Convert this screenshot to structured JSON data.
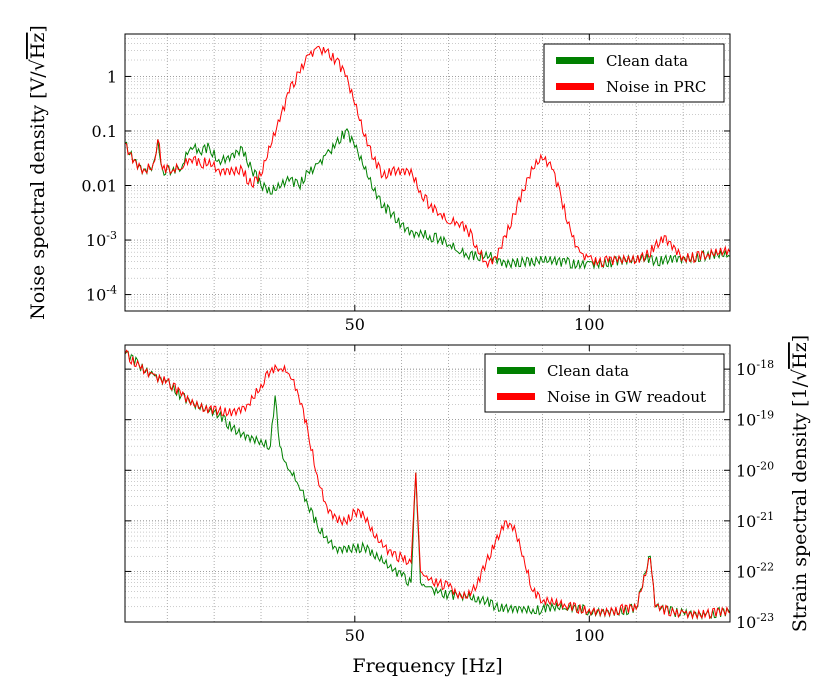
{
  "chart_data": [
    {
      "type": "line",
      "ylabel_prefix": "Noise spectral density [V/",
      "ylabel_radicand": "Hz",
      "ylabel_suffix": "]",
      "xlabel": "",
      "yscale": "log",
      "xlim": [
        1,
        130
      ],
      "ylim": [
        5e-05,
        6
      ],
      "x_ticks": [
        50,
        100
      ],
      "x_tick_labels": [
        "50",
        "100"
      ],
      "y_ticks": [
        0.0001,
        0.001,
        0.01,
        0.1,
        1
      ],
      "y_tick_labels": [
        "10^-4",
        "10^-3",
        "0.01",
        "0.1",
        "1"
      ],
      "grid": true,
      "legend_position": "top-right",
      "series": [
        {
          "name": "Clean data",
          "color": "#008000",
          "x": [
            1,
            3,
            5,
            7,
            8,
            9,
            11,
            13,
            15,
            17,
            19,
            21,
            23,
            26,
            28,
            30,
            32,
            34,
            36,
            38,
            40,
            42,
            44,
            46,
            48,
            50,
            52,
            54,
            56,
            58,
            60,
            62,
            63,
            64,
            66,
            68,
            70,
            72,
            74,
            76,
            78,
            80,
            82,
            84,
            86,
            88,
            90,
            95,
            100,
            105,
            110,
            112,
            114,
            116,
            118,
            120,
            125,
            130
          ],
          "y": [
            0.06,
            0.03,
            0.02,
            0.025,
            0.07,
            0.02,
            0.018,
            0.02,
            0.05,
            0.04,
            0.05,
            0.03,
            0.035,
            0.05,
            0.02,
            0.01,
            0.007,
            0.009,
            0.012,
            0.01,
            0.018,
            0.025,
            0.04,
            0.06,
            0.1,
            0.05,
            0.02,
            0.008,
            0.004,
            0.003,
            0.002,
            0.0015,
            0.0014,
            0.0015,
            0.0012,
            0.001,
            0.0008,
            0.0006,
            0.0005,
            0.0005,
            0.0006,
            0.0005,
            0.0004,
            0.0004,
            0.0004,
            0.00037,
            0.0004,
            0.00037,
            0.0004,
            0.0004,
            0.0004,
            0.00045,
            0.0004,
            0.00045,
            0.0005,
            0.0005,
            0.0005,
            0.0005
          ]
        },
        {
          "name": "Noise in PRC",
          "color": "#ff0000",
          "x": [
            1,
            3,
            5,
            7,
            8,
            9,
            11,
            13,
            15,
            17,
            19,
            21,
            23,
            26,
            28,
            30,
            32,
            34,
            36,
            38,
            40,
            42,
            44,
            46,
            48,
            50,
            52,
            54,
            56,
            58,
            60,
            62,
            64,
            66,
            68,
            70,
            72,
            74,
            76,
            78,
            80,
            82,
            84,
            86,
            88,
            90,
            92,
            94,
            96,
            98,
            100,
            102,
            104,
            106,
            108,
            110,
            112,
            114,
            116,
            118,
            120,
            125,
            130
          ],
          "y": [
            0.06,
            0.03,
            0.02,
            0.025,
            0.07,
            0.02,
            0.018,
            0.02,
            0.03,
            0.025,
            0.03,
            0.02,
            0.02,
            0.02,
            0.01,
            0.015,
            0.05,
            0.15,
            0.5,
            1.2,
            2.5,
            3.5,
            3.0,
            2.0,
            1.0,
            0.3,
            0.08,
            0.03,
            0.015,
            0.02,
            0.02,
            0.02,
            0.008,
            0.004,
            0.003,
            0.002,
            0.002,
            0.0015,
            0.0008,
            0.0004,
            0.0005,
            0.0012,
            0.003,
            0.008,
            0.02,
            0.03,
            0.02,
            0.006,
            0.0015,
            0.0006,
            0.0005,
            0.0004,
            0.0004,
            0.0004,
            0.0004,
            0.0004,
            0.0005,
            0.0008,
            0.0012,
            0.0008,
            0.0005,
            0.0005,
            0.0006
          ]
        }
      ]
    },
    {
      "type": "line",
      "ylabel_prefix": "Strain spectral density [1/",
      "ylabel_radicand": "Hz",
      "ylabel_suffix": "]",
      "xlabel": "Frequency [Hz]",
      "yscale": "log",
      "xlim": [
        1,
        130
      ],
      "ylim": [
        1e-23,
        3e-18
      ],
      "x_ticks": [
        50,
        100
      ],
      "x_tick_labels": [
        "50",
        "100"
      ],
      "y_ticks": [
        1e-23,
        1e-22,
        1e-21,
        1e-20,
        1e-19,
        1e-18
      ],
      "y_tick_labels": [
        "10^-23",
        "10^-22",
        "10^-21",
        "10^-20",
        "10^-19",
        "10^-18"
      ],
      "grid": true,
      "legend_position": "top-right",
      "series": [
        {
          "name": "Clean data",
          "color": "#008000",
          "x": [
            1,
            4,
            7,
            10,
            13,
            15,
            18,
            21,
            24,
            27,
            30,
            32,
            33,
            34,
            35,
            36,
            38,
            40,
            42,
            44,
            46,
            48,
            50,
            52,
            54,
            56,
            58,
            60,
            62,
            63,
            64,
            65,
            66,
            68,
            70,
            72,
            74,
            76,
            78,
            80,
            82,
            84,
            86,
            88,
            90,
            95,
            100,
            105,
            110,
            113,
            114,
            115,
            118,
            120,
            125,
            130
          ],
          "y": [
            2e-18,
            1.2e-18,
            8e-19,
            6e-19,
            3e-19,
            2e-19,
            1.5e-19,
            1.2e-19,
            7e-20,
            5e-20,
            4e-20,
            3e-20,
            3e-19,
            3e-20,
            1.5e-20,
            1e-20,
            5e-21,
            2e-21,
            8e-22,
            5e-22,
            3e-22,
            3e-22,
            3e-22,
            3e-22,
            2e-22,
            1.5e-22,
            1e-22,
            8e-23,
            6e-23,
            9e-21,
            6e-23,
            5e-23,
            5e-23,
            4e-23,
            3.5e-23,
            3e-23,
            3e-23,
            2.5e-23,
            2.5e-23,
            2e-23,
            2e-23,
            2e-23,
            2e-23,
            1.8e-23,
            1.8e-23,
            1.8e-23,
            1.7e-23,
            1.7e-23,
            1.8e-23,
            2e-22,
            2e-23,
            1.7e-23,
            1.6e-23,
            1.6e-23,
            1.5e-23,
            1.5e-23
          ]
        },
        {
          "name": "Noise in GW readout",
          "color": "#ff0000",
          "x": [
            1,
            4,
            7,
            10,
            13,
            15,
            18,
            21,
            24,
            27,
            30,
            32,
            34,
            36,
            38,
            40,
            42,
            44,
            46,
            48,
            50,
            52,
            54,
            56,
            58,
            60,
            62,
            63,
            64,
            65,
            66,
            68,
            70,
            72,
            74,
            76,
            78,
            80,
            82,
            84,
            86,
            88,
            90,
            95,
            100,
            105,
            110,
            113,
            114,
            115,
            118,
            120,
            125,
            130
          ],
          "y": [
            2e-18,
            1.2e-18,
            8e-19,
            6e-19,
            3e-19,
            2e-19,
            1.5e-19,
            1.5e-19,
            1.5e-19,
            2e-19,
            5e-19,
            9e-19,
            1e-18,
            8e-19,
            3e-19,
            6e-20,
            8e-21,
            2e-21,
            1.2e-21,
            1e-21,
            1.5e-21,
            1.2e-21,
            5e-22,
            3e-22,
            2e-22,
            2e-22,
            1.5e-22,
            9e-21,
            1e-22,
            8e-23,
            7e-23,
            6e-23,
            5e-23,
            3e-23,
            3e-23,
            5e-23,
            1.5e-22,
            4e-22,
            1e-21,
            8e-22,
            2e-22,
            4e-23,
            2.5e-23,
            2e-23,
            1.8e-23,
            1.7e-23,
            1.8e-23,
            1.8e-22,
            2e-23,
            1.7e-23,
            1.6e-23,
            1.6e-23,
            1.5e-23,
            1.5e-23
          ]
        }
      ]
    }
  ]
}
